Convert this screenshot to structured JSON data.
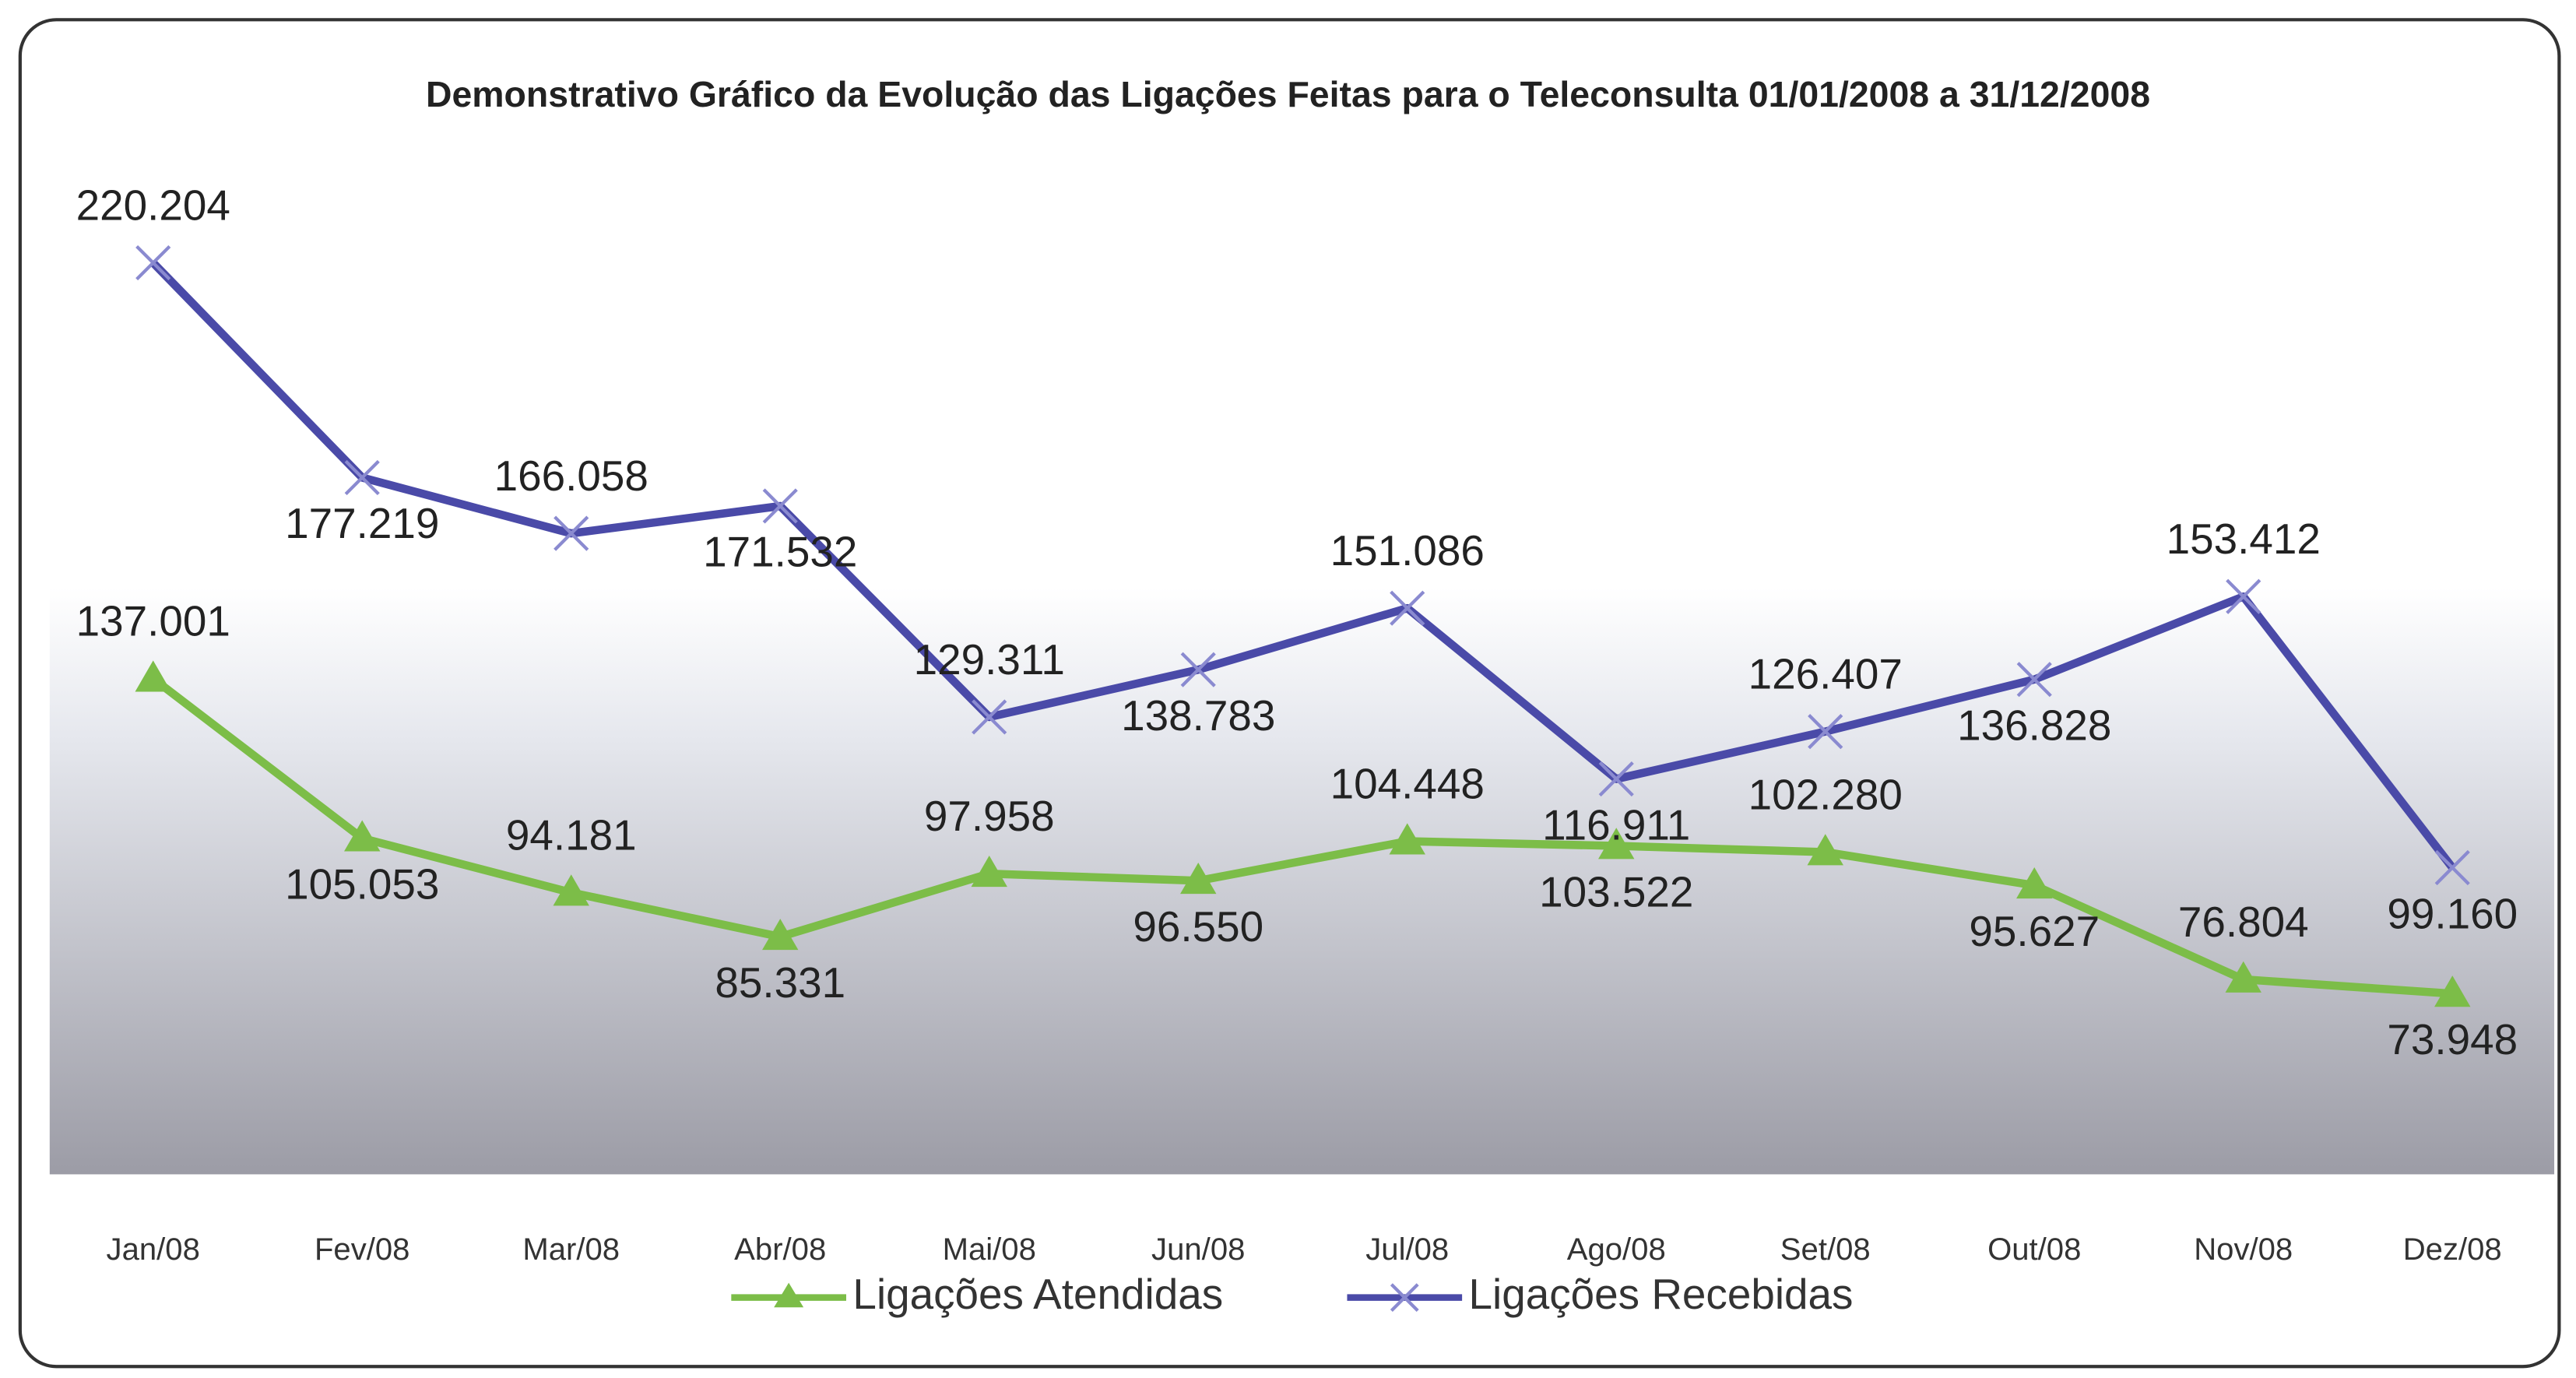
{
  "chart_data": {
    "type": "line",
    "title": "Demonstrativo Gráfico da Evolução das Ligações Feitas para o Teleconsulta 01/01/2008 a 31/12/2008",
    "categories": [
      "Jan/08",
      "Fev/08",
      "Mar/08",
      "Abr/08",
      "Mai/08",
      "Jun/08",
      "Jul/08",
      "Ago/08",
      "Set/08",
      "Out/08",
      "Nov/08",
      "Dez/08"
    ],
    "series": [
      {
        "name": "Ligações Atendidas",
        "color": "#7cbd48",
        "marker": "triangle",
        "values": [
          137001,
          105053,
          94181,
          85331,
          97958,
          96550,
          104448,
          103522,
          102280,
          95627,
          76804,
          73948
        ],
        "value_labels": [
          "137.001",
          "105.053",
          "94.181",
          "85.331",
          "97.958",
          "96.550",
          "104.448",
          "103.522",
          "102.280",
          "95.627",
          "76.804",
          "73.948"
        ]
      },
      {
        "name": "Ligações Recebidas",
        "color": "#4a4aa8",
        "marker": "x",
        "values": [
          220204,
          177219,
          166058,
          171532,
          129311,
          138783,
          151086,
          116911,
          126407,
          136828,
          153412,
          99160
        ],
        "value_labels": [
          "220.204",
          "177.219",
          "166.058",
          "171.532",
          "129.311",
          "138.783",
          "151.086",
          "116.911",
          "126.407",
          "136.828",
          "153.412",
          "99.160"
        ]
      }
    ],
    "legend": "bottom"
  }
}
